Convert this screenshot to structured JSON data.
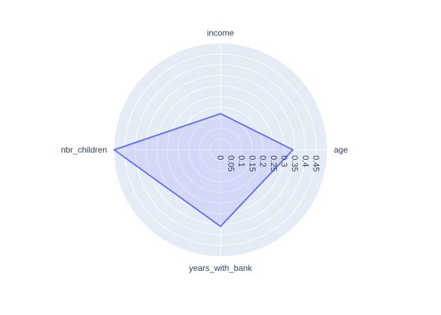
{
  "chart_data": {
    "type": "radar",
    "categories": [
      "age",
      "income",
      "nbr_children",
      "years_with_bank"
    ],
    "values": [
      0.34,
      0.17,
      0.5,
      0.36
    ],
    "radial_range": [
      0,
      0.5
    ],
    "radial_ticks": [
      "0",
      "0.05",
      "0.1",
      "0.15",
      "0.2",
      "0.25",
      "0.3",
      "0.35",
      "0.4",
      "0.45"
    ],
    "grid": true,
    "colors": {
      "background": "#e5ecf6",
      "grid": "#ffffff",
      "series": "#636efa",
      "fill": "#636efa",
      "text": "#2a3f5f"
    }
  }
}
